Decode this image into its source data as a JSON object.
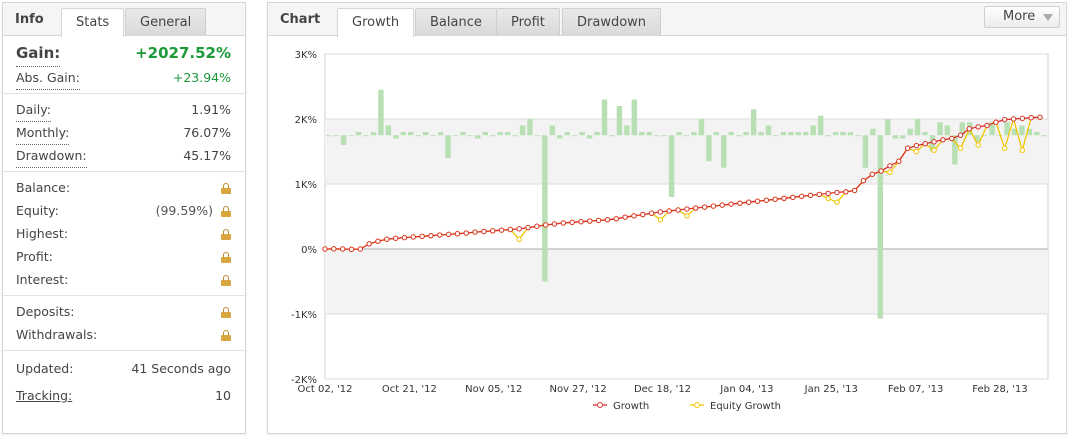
{
  "info_panel": {
    "title": "Info",
    "tabs": [
      {
        "label": "Stats",
        "active": true
      },
      {
        "label": "General",
        "active": false
      }
    ],
    "gain": {
      "label": "Gain:",
      "value": "+2027.52%"
    },
    "abs_gain": {
      "label": "Abs. Gain:",
      "value": "+23.94%"
    },
    "daily": {
      "label": "Daily:",
      "value": "1.91%"
    },
    "monthly": {
      "label": "Monthly:",
      "value": "76.07%"
    },
    "drawdown": {
      "label": "Drawdown:",
      "value": "45.17%"
    },
    "balance": {
      "label": "Balance:",
      "icon": "lock-icon"
    },
    "equity": {
      "label": "Equity:",
      "value": "(99.59%)",
      "icon": "lock-icon"
    },
    "highest": {
      "label": "Highest:",
      "icon": "lock-icon"
    },
    "profit": {
      "label": "Profit:",
      "icon": "lock-icon"
    },
    "interest": {
      "label": "Interest:",
      "icon": "lock-icon"
    },
    "deposits": {
      "label": "Deposits:",
      "icon": "lock-icon"
    },
    "withdrawals": {
      "label": "Withdrawals:",
      "icon": "lock-icon"
    },
    "updated": {
      "label": "Updated:",
      "value": "41 Seconds ago"
    },
    "tracking": {
      "label": "Tracking:",
      "value": "10"
    }
  },
  "chart_panel": {
    "title": "Chart",
    "tabs": [
      {
        "label": "Growth",
        "active": true
      },
      {
        "label": "Balance",
        "active": false
      },
      {
        "label": "Profit",
        "active": false
      },
      {
        "label": "Drawdown",
        "active": false
      }
    ],
    "more_label": "More",
    "more_icon": "caret-down-icon"
  },
  "colors": {
    "growth": "#d9332a",
    "equity": "#f2c500",
    "bars": "#b9e0b4",
    "green_text": "#1c9a3a"
  },
  "chart_data": {
    "type": "line",
    "x_ticks": [
      "Oct 02, '12",
      "Oct 21, '12",
      "Nov 05, '12",
      "Nov 27, '12",
      "Dec 18, '12",
      "Jan 04, '13",
      "Jan 25, '13",
      "Feb 07, '13",
      "Feb 28, '13"
    ],
    "y_ticks": [
      "3K%",
      "2K%",
      "1K%",
      "0%",
      "-1K%",
      "-2K%"
    ],
    "ylim": [
      -2000,
      3000
    ],
    "grid": true,
    "legend_position": "bottom-center",
    "series": [
      {
        "name": "Growth",
        "type": "line",
        "values": [
          0,
          2,
          0,
          -5,
          0,
          80,
          120,
          150,
          165,
          175,
          185,
          195,
          205,
          215,
          225,
          235,
          245,
          260,
          270,
          280,
          290,
          300,
          310,
          330,
          350,
          370,
          385,
          400,
          410,
          420,
          430,
          440,
          450,
          465,
          490,
          510,
          530,
          550,
          570,
          585,
          600,
          615,
          630,
          645,
          660,
          675,
          690,
          705,
          720,
          735,
          750,
          765,
          780,
          795,
          810,
          825,
          840,
          855,
          870,
          880,
          900,
          1050,
          1150,
          1200,
          1280,
          1350,
          1550,
          1590,
          1620,
          1650,
          1680,
          1700,
          1750,
          1850,
          1880,
          1900,
          1950,
          1990,
          2000,
          2010,
          2020,
          2027
        ]
      },
      {
        "name": "Equity Growth",
        "type": "line",
        "values": [
          0,
          2,
          0,
          -5,
          0,
          80,
          120,
          150,
          165,
          175,
          185,
          195,
          205,
          215,
          225,
          235,
          245,
          260,
          270,
          280,
          290,
          300,
          150,
          330,
          350,
          370,
          385,
          400,
          410,
          420,
          430,
          440,
          450,
          465,
          490,
          510,
          530,
          550,
          450,
          585,
          600,
          510,
          630,
          645,
          660,
          675,
          690,
          705,
          720,
          735,
          750,
          765,
          780,
          795,
          810,
          825,
          840,
          780,
          720,
          880,
          900,
          1050,
          1150,
          1200,
          1180,
          1350,
          1550,
          1500,
          1620,
          1520,
          1680,
          1700,
          1550,
          1850,
          1600,
          1900,
          1950,
          1550,
          2000,
          1520,
          2020,
          2027
        ]
      },
      {
        "name": "Monthly bars",
        "type": "bar",
        "values": [
          1750,
          1750,
          1600,
          1750,
          1800,
          1750,
          1800,
          2450,
          1900,
          1700,
          1800,
          1800,
          1750,
          1800,
          1750,
          1800,
          1400,
          1750,
          1800,
          1750,
          1700,
          1800,
          1750,
          1800,
          1800,
          1750,
          1900,
          2000,
          1750,
          -500,
          1900,
          1700,
          1800,
          1750,
          1800,
          1700,
          1800,
          2300,
          1750,
          2200,
          1900,
          2300,
          1800,
          1800,
          1750,
          1750,
          800,
          1800,
          1750,
          1800,
          2000,
          1350,
          1800,
          1250,
          1800,
          1750,
          1800,
          2150,
          1800,
          1900,
          1750,
          1800,
          1800,
          1800,
          1800,
          1900,
          2050,
          1750,
          1800,
          1800,
          1800,
          1750,
          1250,
          1850,
          -1070,
          2000,
          1700,
          1700,
          1850,
          2000,
          1800,
          1500,
          1950,
          1900,
          1300,
          1950,
          1950,
          1650,
          1750,
          1950,
          1750,
          1950,
          1850,
          1900,
          1850,
          1800,
          1750
        ]
      }
    ]
  }
}
